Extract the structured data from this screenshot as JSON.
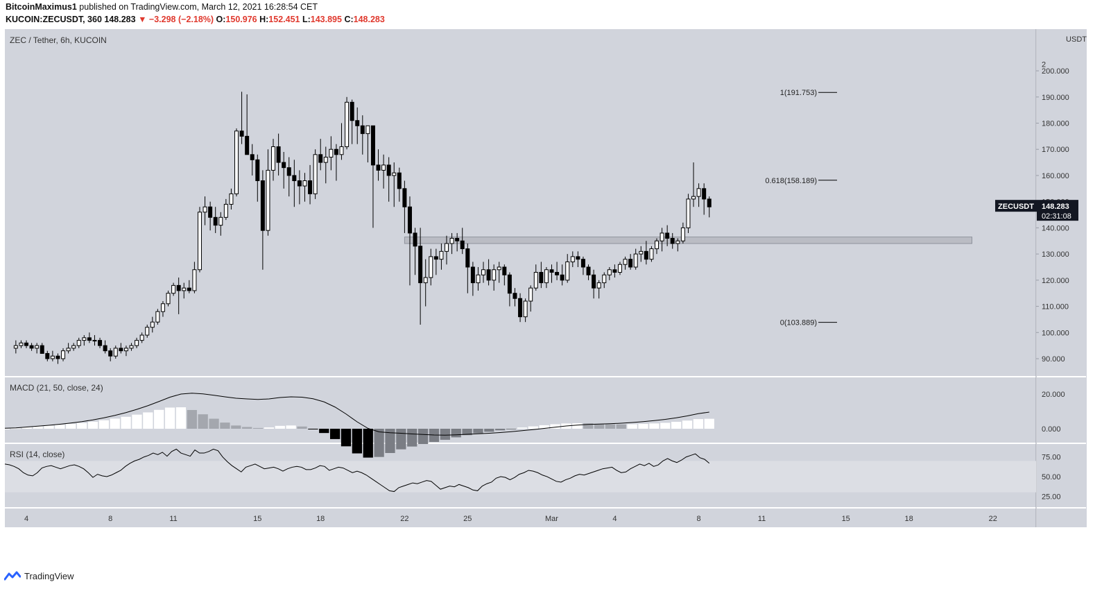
{
  "header": {
    "author": "BitcoinMaximus1",
    "published_text": "published on TradingView.com, March 12, 2021 16:28:54 CET",
    "symbol": "KUCOIN:ZECUSDT, 360",
    "last": "148.283",
    "change": "▼ −3.298 (−2.18%)",
    "o_label": "O:",
    "o_value": "150.976",
    "h_label": "H:",
    "h_value": "152.451",
    "l_label": "L:",
    "l_value": "143.895",
    "c_label": "C:",
    "c_value": "148.283"
  },
  "footer": {
    "brand": "TradingView",
    "icon": "tradingview-logo-icon"
  },
  "colors": {
    "pane_bg": "#d1d4dc",
    "rsi_band": "#dcdee4",
    "up_candle": "#ffffff",
    "down_candle": "#000000",
    "text_red": "#e0392e"
  },
  "chart_data": {
    "type": "candlestick",
    "title": "ZEC / Tether, 6h, KUCOIN",
    "price_axis_unit": "USDT",
    "price_axis_ticks": [
      "200.000",
      "190.000",
      "180.000",
      "170.000",
      "160.000",
      "150.000",
      "140.000",
      "130.000",
      "120.000",
      "110.000",
      "100.000",
      "90.000"
    ],
    "ylim": [
      84,
      210
    ],
    "x_ticks": [
      "4",
      "8",
      "11",
      "15",
      "18",
      "22",
      "25",
      "Mar",
      "4",
      "8",
      "11",
      "15",
      "18",
      "22"
    ],
    "x_ticks_days": [
      4,
      8,
      11,
      15,
      18,
      22,
      25,
      29,
      32,
      36,
      39,
      43,
      46,
      50
    ],
    "x_axis_note": "x values are calendar day numbers counted from Feb 1, 2021 (Mar 1 = 29)",
    "candles_6h_ohlc": [
      [
        94,
        97,
        92,
        95
      ],
      [
        95,
        97,
        94,
        96
      ],
      [
        96,
        97,
        94,
        95
      ],
      [
        95,
        96,
        93,
        94
      ],
      [
        94,
        96,
        92,
        95
      ],
      [
        95,
        96,
        93,
        92
      ],
      [
        92,
        93,
        89,
        90
      ],
      [
        90,
        93,
        89,
        91
      ],
      [
        91,
        92,
        88,
        90
      ],
      [
        90,
        94,
        89,
        93
      ],
      [
        93,
        96,
        92,
        94
      ],
      [
        94,
        96,
        93,
        95
      ],
      [
        95,
        98,
        94,
        97
      ],
      [
        97,
        99,
        95,
        98
      ],
      [
        98,
        100,
        96,
        97
      ],
      [
        97,
        99,
        95,
        97
      ],
      [
        97,
        98,
        94,
        95
      ],
      [
        95,
        97,
        92,
        93
      ],
      [
        93,
        94,
        89,
        91
      ],
      [
        91,
        95,
        90,
        94
      ],
      [
        94,
        96,
        92,
        93
      ],
      [
        93,
        95,
        91,
        94
      ],
      [
        94,
        96,
        93,
        95
      ],
      [
        95,
        98,
        94,
        97
      ],
      [
        97,
        100,
        96,
        99
      ],
      [
        99,
        103,
        98,
        102
      ],
      [
        102,
        106,
        100,
        104
      ],
      [
        104,
        109,
        103,
        108
      ],
      [
        108,
        112,
        106,
        111
      ],
      [
        111,
        116,
        110,
        115
      ],
      [
        115,
        119,
        114,
        118
      ],
      [
        118,
        121,
        107,
        116
      ],
      [
        116,
        119,
        113,
        117
      ],
      [
        117,
        120,
        115,
        116
      ],
      [
        116,
        127,
        115,
        124
      ],
      [
        124,
        148,
        123,
        146
      ],
      [
        146,
        152,
        141,
        148
      ],
      [
        148,
        150,
        139,
        144
      ],
      [
        144,
        148,
        138,
        141
      ],
      [
        141,
        146,
        137,
        144
      ],
      [
        144,
        151,
        143,
        149
      ],
      [
        149,
        155,
        147,
        153
      ],
      [
        153,
        178,
        152,
        177
      ],
      [
        177,
        192,
        172,
        175
      ],
      [
        175,
        191,
        170,
        168
      ],
      [
        168,
        172,
        160,
        166
      ],
      [
        166,
        168,
        150,
        158
      ],
      [
        158,
        162,
        124,
        139
      ],
      [
        139,
        170,
        137,
        162
      ],
      [
        162,
        174,
        158,
        171
      ],
      [
        171,
        176,
        160,
        165
      ],
      [
        165,
        169,
        155,
        163
      ],
      [
        163,
        167,
        152,
        160
      ],
      [
        160,
        166,
        148,
        158
      ],
      [
        158,
        162,
        149,
        156
      ],
      [
        156,
        161,
        150,
        158
      ],
      [
        158,
        164,
        149,
        153
      ],
      [
        153,
        170,
        151,
        168
      ],
      [
        168,
        174,
        162,
        165
      ],
      [
        165,
        171,
        157,
        167
      ],
      [
        167,
        175,
        162,
        170
      ],
      [
        170,
        172,
        158,
        168
      ],
      [
        168,
        180,
        166,
        171
      ],
      [
        171,
        190,
        170,
        188
      ],
      [
        188,
        189,
        172,
        181
      ],
      [
        181,
        186,
        172,
        179
      ],
      [
        179,
        183,
        168,
        176
      ],
      [
        176,
        179,
        165,
        179
      ],
      [
        179,
        172,
        140,
        164
      ],
      [
        164,
        170,
        158,
        162
      ],
      [
        162,
        168,
        155,
        164
      ],
      [
        164,
        167,
        150,
        160
      ],
      [
        160,
        165,
        148,
        161
      ],
      [
        161,
        163,
        150,
        155
      ],
      [
        155,
        158,
        138,
        148
      ],
      [
        148,
        152,
        118,
        138
      ],
      [
        138,
        140,
        122,
        133
      ],
      [
        133,
        140,
        103,
        119
      ],
      [
        119,
        128,
        110,
        121
      ],
      [
        121,
        132,
        118,
        129
      ],
      [
        129,
        132,
        122,
        128
      ],
      [
        128,
        134,
        124,
        131
      ],
      [
        131,
        137,
        126,
        134
      ],
      [
        134,
        138,
        130,
        136
      ],
      [
        136,
        138,
        131,
        135
      ],
      [
        135,
        140,
        130,
        132
      ],
      [
        132,
        134,
        115,
        125
      ],
      [
        125,
        127,
        114,
        119
      ],
      [
        119,
        125,
        116,
        122
      ],
      [
        122,
        127,
        119,
        124
      ],
      [
        124,
        128,
        118,
        120
      ],
      [
        120,
        126,
        116,
        124
      ],
      [
        124,
        127,
        119,
        125
      ],
      [
        125,
        126,
        118,
        122
      ],
      [
        122,
        123,
        110,
        115
      ],
      [
        115,
        117,
        110,
        113
      ],
      [
        113,
        115,
        104,
        106
      ],
      [
        106,
        113,
        104,
        112
      ],
      [
        112,
        118,
        108,
        117
      ],
      [
        117,
        126,
        116,
        123
      ],
      [
        123,
        127,
        117,
        119
      ],
      [
        119,
        125,
        117,
        124
      ],
      [
        124,
        126,
        119,
        123
      ],
      [
        123,
        127,
        120,
        122
      ],
      [
        122,
        126,
        118,
        120
      ],
      [
        120,
        130,
        119,
        127
      ],
      [
        127,
        131,
        125,
        129
      ],
      [
        129,
        131,
        125,
        128
      ],
      [
        128,
        129,
        122,
        125
      ],
      [
        125,
        126,
        120,
        122
      ],
      [
        122,
        124,
        113,
        117
      ],
      [
        117,
        120,
        113,
        119
      ],
      [
        119,
        123,
        117,
        122
      ],
      [
        122,
        125,
        120,
        124
      ],
      [
        124,
        126,
        121,
        123
      ],
      [
        123,
        127,
        122,
        126
      ],
      [
        126,
        129,
        124,
        128
      ],
      [
        128,
        130,
        124,
        125
      ],
      [
        125,
        132,
        124,
        130
      ],
      [
        130,
        133,
        127,
        131
      ],
      [
        131,
        135,
        126,
        128
      ],
      [
        128,
        133,
        127,
        132
      ],
      [
        132,
        136,
        130,
        135
      ],
      [
        135,
        140,
        131,
        138
      ],
      [
        138,
        141,
        133,
        136
      ],
      [
        136,
        138,
        132,
        134
      ],
      [
        134,
        136,
        131,
        135
      ],
      [
        135,
        142,
        134,
        140
      ],
      [
        140,
        153,
        138,
        151
      ],
      [
        151,
        165,
        148,
        152
      ],
      [
        152,
        157,
        148,
        155
      ],
      [
        155,
        157,
        145,
        151
      ],
      [
        151,
        152,
        144,
        148
      ]
    ],
    "support_zone": [
      134,
      136.5
    ],
    "fib_levels": [
      {
        "label": "1(191.753)",
        "value": 191.753
      },
      {
        "label": "0.618(158.189)",
        "value": 158.189
      },
      {
        "label": "0(103.889)",
        "value": 103.889
      }
    ],
    "last_price_label": {
      "symbol": "ZECUSDT",
      "price": "148.283",
      "countdown": "02:31:08"
    },
    "top_axis_partial_label": "2",
    "macd": {
      "title": "MACD (21, 50, close, 24)",
      "ticks": [
        "20.000",
        "0.000"
      ],
      "ylim": [
        -4,
        24
      ],
      "line": [
        0.3,
        0.5,
        1,
        1.5,
        2,
        2.6,
        3.3,
        4.1,
        5.1,
        6.3,
        7.7,
        9.3,
        11.2,
        13.3,
        15.7,
        18.2,
        20,
        20.5,
        20.1,
        19.3,
        18.4,
        17.6,
        17.2,
        16.9,
        17.2,
        18,
        18.4,
        18.2,
        17.3,
        15.5,
        12.5,
        8.5,
        4,
        0.2,
        -1.8,
        -2.3,
        -2.6,
        -3,
        -3.3,
        -3.6,
        -3.7,
        -3.5,
        -3.2,
        -2.9,
        -2.6,
        -2.2,
        -1.7,
        -1.1,
        -0.5,
        0.2,
        0.9,
        1.6,
        2.1,
        2.5,
        2.7,
        2.9,
        3.2,
        3.6,
        4.1,
        4.7,
        5.4,
        6.3,
        7.4,
        8.7,
        9.6
      ]
    },
    "rsi": {
      "title": "RSI (14, close)",
      "ticks": [
        "75.00",
        "50.00",
        "25.00"
      ],
      "band": [
        30,
        70
      ],
      "ylim": [
        20,
        88
      ],
      "values": [
        66,
        65,
        63,
        60,
        55,
        52,
        51,
        55,
        61,
        63,
        64,
        62,
        60,
        62,
        64,
        65,
        63,
        60,
        55,
        49,
        53,
        51,
        50,
        52,
        55,
        58,
        63,
        67,
        70,
        72,
        75,
        77,
        80,
        78,
        81,
        76,
        82,
        85,
        80,
        78,
        76,
        84,
        80,
        80,
        82,
        85,
        83,
        75,
        69,
        64,
        60,
        56,
        62,
        64,
        66,
        63,
        60,
        61,
        62,
        60,
        57,
        60,
        62,
        63,
        62,
        59,
        59,
        61,
        64,
        63,
        58,
        60,
        62,
        61,
        58,
        55,
        57,
        55,
        52,
        48,
        44,
        40,
        36,
        32,
        31,
        36,
        38,
        40,
        42,
        41,
        43,
        45,
        44,
        39,
        34,
        36,
        38,
        37,
        40,
        38,
        36,
        33,
        32,
        38,
        41,
        43,
        48,
        50,
        49,
        46,
        49,
        53,
        55,
        58,
        57,
        55,
        52,
        50,
        47,
        44,
        43,
        46,
        48,
        51,
        53,
        52,
        54,
        56,
        58,
        60,
        61,
        62,
        58,
        55,
        56,
        60,
        63,
        66,
        64,
        67,
        63,
        65,
        70,
        73,
        70,
        68,
        71,
        75,
        77,
        79,
        74,
        72,
        67
      ]
    }
  }
}
